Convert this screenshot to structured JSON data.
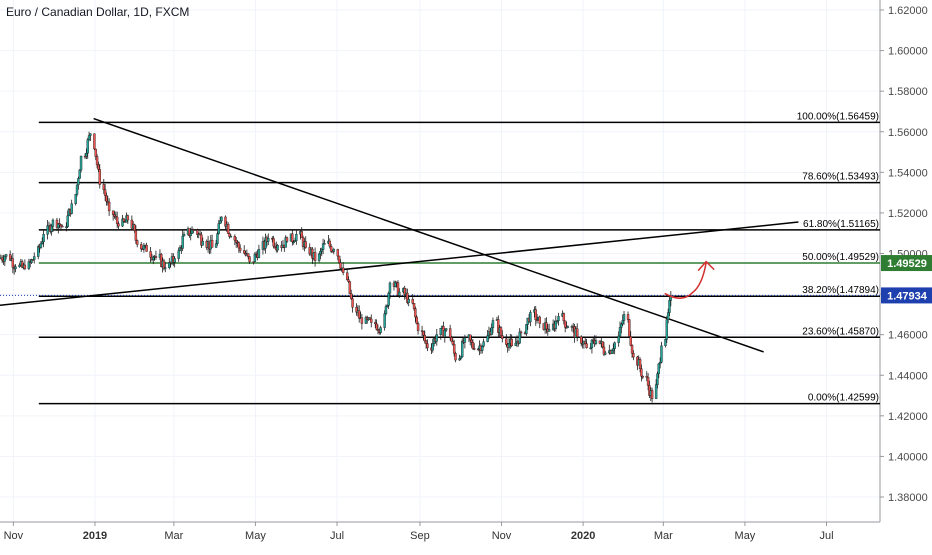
{
  "chart_data": {
    "type": "candlestick",
    "title": "Euro / Canadian Dollar, 1D, FXCM",
    "x_ticks": [
      "Nov",
      "2019",
      "Mar",
      "May",
      "Jul",
      "Sep",
      "Nov",
      "2020",
      "Mar",
      "May",
      "Jul"
    ],
    "x_tick_bold": [
      "2019",
      "2020"
    ],
    "y_ticks": [
      "1.62000",
      "1.60000",
      "1.58000",
      "1.56000",
      "1.54000",
      "1.52000",
      "1.50000",
      "1.48000",
      "1.46000",
      "1.44000",
      "1.42000",
      "1.40000",
      "1.38000"
    ],
    "y_range": [
      1.37,
      1.62
    ],
    "x_range": [
      "2018-10-22",
      "2020-08-10"
    ],
    "fib_levels": [
      {
        "label": "100.00%(1.56459)",
        "value": 1.56459,
        "color": "#000000",
        "from": "2018-11-20",
        "to": "2020-08-10"
      },
      {
        "label": "78.60%(1.53493)",
        "value": 1.53493,
        "color": "#000000",
        "from": "2018-11-20",
        "to": "2020-08-10"
      },
      {
        "label": "61.80%(1.51165)",
        "value": 1.51165,
        "color": "#000000",
        "from": "2018-11-20",
        "to": "2020-08-10"
      },
      {
        "label": "50.00%(1.49529)",
        "value": 1.49529,
        "color": "#2e7d32",
        "from": "2018-11-20",
        "to": "2020-08-10"
      },
      {
        "label": "38.20%(1.47894)",
        "value": 1.47894,
        "color": "#000000",
        "from": "2018-11-20",
        "to": "2020-08-10"
      },
      {
        "label": "23.60%(1.45870)",
        "value": 1.4587,
        "color": "#000000",
        "from": "2018-11-20",
        "to": "2020-08-10"
      },
      {
        "label": "0.00%(1.42599)",
        "value": 1.42599,
        "color": "#000000",
        "from": "2018-11-20",
        "to": "2020-08-10"
      }
    ],
    "trendlines": [
      {
        "from": [
          "2018-12-31",
          1.5665
        ],
        "to": [
          "2020-05-15",
          1.4515
        ],
        "color": "#000000"
      },
      {
        "from": [
          "2018-10-22",
          1.4745
        ],
        "to": [
          "2020-06-10",
          1.5155
        ],
        "color": "#000000"
      }
    ],
    "price_labels": [
      {
        "text": "1.49529",
        "value": 1.49529,
        "color": "#2e7d32"
      },
      {
        "text": "1.47934",
        "value": 1.47934,
        "color": "#1e40af"
      }
    ],
    "current_price": 1.47934,
    "colors": {
      "up": "#26a69a",
      "down": "#ef5350",
      "arrow": "#d32f2f",
      "grid": "#f0f3fa",
      "axis_text": "#4a4a4a"
    },
    "candles": [
      {
        "d": "2018-10-22",
        "o": 1.4975,
        "h": 1.5035,
        "l": 1.4915,
        "c": 1.4995
      },
      {
        "d": "2018-10-29",
        "o": 1.4995,
        "h": 1.5065,
        "l": 1.489,
        "c": 1.4935
      },
      {
        "d": "2018-11-05",
        "o": 1.4935,
        "h": 1.499,
        "l": 1.4865,
        "c": 1.4925
      },
      {
        "d": "2018-11-12",
        "o": 1.4925,
        "h": 1.502,
        "l": 1.4895,
        "c": 1.4985
      },
      {
        "d": "2018-11-19",
        "o": 1.4985,
        "h": 1.5115,
        "l": 1.496,
        "c": 1.5095
      },
      {
        "d": "2018-11-26",
        "o": 1.5095,
        "h": 1.5185,
        "l": 1.504,
        "c": 1.5165
      },
      {
        "d": "2018-12-03",
        "o": 1.5165,
        "h": 1.5225,
        "l": 1.509,
        "c": 1.513
      },
      {
        "d": "2018-12-10",
        "o": 1.513,
        "h": 1.5265,
        "l": 1.5105,
        "c": 1.5245
      },
      {
        "d": "2018-12-17",
        "o": 1.5245,
        "h": 1.551,
        "l": 1.522,
        "c": 1.548
      },
      {
        "d": "2018-12-24",
        "o": 1.548,
        "h": 1.565,
        "l": 1.541,
        "c": 1.559
      },
      {
        "d": "2018-12-31",
        "o": 1.559,
        "h": 1.566,
        "l": 1.529,
        "c": 1.534
      },
      {
        "d": "2019-01-07",
        "o": 1.534,
        "h": 1.5395,
        "l": 1.5175,
        "c": 1.521
      },
      {
        "d": "2019-01-14",
        "o": 1.521,
        "h": 1.5265,
        "l": 1.5095,
        "c": 1.5135
      },
      {
        "d": "2019-01-21",
        "o": 1.5135,
        "h": 1.522,
        "l": 1.505,
        "c": 1.5165
      },
      {
        "d": "2019-01-28",
        "o": 1.5165,
        "h": 1.521,
        "l": 1.5015,
        "c": 1.5045
      },
      {
        "d": "2019-02-04",
        "o": 1.5045,
        "h": 1.5095,
        "l": 1.496,
        "c": 1.501
      },
      {
        "d": "2019-02-11",
        "o": 1.501,
        "h": 1.507,
        "l": 1.4945,
        "c": 1.498
      },
      {
        "d": "2019-02-18",
        "o": 1.498,
        "h": 1.5035,
        "l": 1.4905,
        "c": 1.493
      },
      {
        "d": "2019-02-25",
        "o": 1.493,
        "h": 1.501,
        "l": 1.488,
        "c": 1.4975
      },
      {
        "d": "2019-03-04",
        "o": 1.4975,
        "h": 1.512,
        "l": 1.495,
        "c": 1.5095
      },
      {
        "d": "2019-03-11",
        "o": 1.5095,
        "h": 1.519,
        "l": 1.5065,
        "c": 1.5115
      },
      {
        "d": "2019-03-18",
        "o": 1.5115,
        "h": 1.517,
        "l": 1.5025,
        "c": 1.506
      },
      {
        "d": "2019-03-25",
        "o": 1.506,
        "h": 1.5135,
        "l": 1.499,
        "c": 1.503
      },
      {
        "d": "2019-04-01",
        "o": 1.503,
        "h": 1.521,
        "l": 1.5,
        "c": 1.518
      },
      {
        "d": "2019-04-08",
        "o": 1.518,
        "h": 1.52,
        "l": 1.504,
        "c": 1.5085
      },
      {
        "d": "2019-04-15",
        "o": 1.5085,
        "h": 1.5105,
        "l": 1.498,
        "c": 1.5015
      },
      {
        "d": "2019-04-22",
        "o": 1.5015,
        "h": 1.506,
        "l": 1.492,
        "c": 1.496
      },
      {
        "d": "2019-04-29",
        "o": 1.496,
        "h": 1.5045,
        "l": 1.4935,
        "c": 1.502
      },
      {
        "d": "2019-05-06",
        "o": 1.502,
        "h": 1.511,
        "l": 1.4995,
        "c": 1.5075
      },
      {
        "d": "2019-05-13",
        "o": 1.5075,
        "h": 1.512,
        "l": 1.5005,
        "c": 1.504
      },
      {
        "d": "2019-05-20",
        "o": 1.504,
        "h": 1.509,
        "l": 1.4975,
        "c": 1.506
      },
      {
        "d": "2019-05-27",
        "o": 1.506,
        "h": 1.513,
        "l": 1.502,
        "c": 1.5095
      },
      {
        "d": "2019-06-03",
        "o": 1.5095,
        "h": 1.514,
        "l": 1.5,
        "c": 1.503
      },
      {
        "d": "2019-06-10",
        "o": 1.503,
        "h": 1.507,
        "l": 1.493,
        "c": 1.4965
      },
      {
        "d": "2019-06-17",
        "o": 1.4965,
        "h": 1.508,
        "l": 1.494,
        "c": 1.505
      },
      {
        "d": "2019-06-24",
        "o": 1.505,
        "h": 1.511,
        "l": 1.499,
        "c": 1.502
      },
      {
        "d": "2019-07-01",
        "o": 1.502,
        "h": 1.5045,
        "l": 1.488,
        "c": 1.4905
      },
      {
        "d": "2019-07-08",
        "o": 1.4905,
        "h": 1.493,
        "l": 1.47,
        "c": 1.4735
      },
      {
        "d": "2019-07-15",
        "o": 1.4735,
        "h": 1.4765,
        "l": 1.461,
        "c": 1.4655
      },
      {
        "d": "2019-07-22",
        "o": 1.4655,
        "h": 1.47,
        "l": 1.4585,
        "c": 1.466
      },
      {
        "d": "2019-07-29",
        "o": 1.466,
        "h": 1.4705,
        "l": 1.46,
        "c": 1.4635
      },
      {
        "d": "2019-08-05",
        "o": 1.4635,
        "h": 1.489,
        "l": 1.462,
        "c": 1.4855
      },
      {
        "d": "2019-08-12",
        "o": 1.4855,
        "h": 1.499,
        "l": 1.478,
        "c": 1.481
      },
      {
        "d": "2019-08-19",
        "o": 1.481,
        "h": 1.486,
        "l": 1.474,
        "c": 1.4775
      },
      {
        "d": "2019-08-26",
        "o": 1.4775,
        "h": 1.48,
        "l": 1.459,
        "c": 1.462
      },
      {
        "d": "2019-09-02",
        "o": 1.462,
        "h": 1.4655,
        "l": 1.451,
        "c": 1.4535
      },
      {
        "d": "2019-09-09",
        "o": 1.4535,
        "h": 1.464,
        "l": 1.4505,
        "c": 1.46
      },
      {
        "d": "2019-09-16",
        "o": 1.46,
        "h": 1.4675,
        "l": 1.4555,
        "c": 1.463
      },
      {
        "d": "2019-09-23",
        "o": 1.463,
        "h": 1.465,
        "l": 1.445,
        "c": 1.4475
      },
      {
        "d": "2019-09-30",
        "o": 1.4475,
        "h": 1.461,
        "l": 1.446,
        "c": 1.4585
      },
      {
        "d": "2019-10-07",
        "o": 1.4585,
        "h": 1.464,
        "l": 1.45,
        "c": 1.453
      },
      {
        "d": "2019-10-14",
        "o": 1.453,
        "h": 1.46,
        "l": 1.4455,
        "c": 1.4565
      },
      {
        "d": "2019-10-21",
        "o": 1.4565,
        "h": 1.47,
        "l": 1.454,
        "c": 1.467
      },
      {
        "d": "2019-10-28",
        "o": 1.467,
        "h": 1.4695,
        "l": 1.454,
        "c": 1.458
      },
      {
        "d": "2019-11-04",
        "o": 1.458,
        "h": 1.4615,
        "l": 1.4505,
        "c": 1.4545
      },
      {
        "d": "2019-11-11",
        "o": 1.4545,
        "h": 1.464,
        "l": 1.452,
        "c": 1.461
      },
      {
        "d": "2019-11-18",
        "o": 1.461,
        "h": 1.474,
        "l": 1.459,
        "c": 1.471
      },
      {
        "d": "2019-11-25",
        "o": 1.471,
        "h": 1.475,
        "l": 1.462,
        "c": 1.4655
      },
      {
        "d": "2019-12-02",
        "o": 1.4655,
        "h": 1.4705,
        "l": 1.458,
        "c": 1.4625
      },
      {
        "d": "2019-12-09",
        "o": 1.4625,
        "h": 1.472,
        "l": 1.46,
        "c": 1.469
      },
      {
        "d": "2019-12-16",
        "o": 1.469,
        "h": 1.472,
        "l": 1.46,
        "c": 1.464
      },
      {
        "d": "2019-12-23",
        "o": 1.464,
        "h": 1.467,
        "l": 1.456,
        "c": 1.459
      },
      {
        "d": "2019-12-30",
        "o": 1.459,
        "h": 1.463,
        "l": 1.45,
        "c": 1.4535
      },
      {
        "d": "2020-01-06",
        "o": 1.4535,
        "h": 1.461,
        "l": 1.448,
        "c": 1.457
      },
      {
        "d": "2020-01-13",
        "o": 1.457,
        "h": 1.46,
        "l": 1.447,
        "c": 1.451
      },
      {
        "d": "2020-01-20",
        "o": 1.451,
        "h": 1.459,
        "l": 1.448,
        "c": 1.456
      },
      {
        "d": "2020-01-27",
        "o": 1.456,
        "h": 1.473,
        "l": 1.454,
        "c": 1.47
      },
      {
        "d": "2020-02-03",
        "o": 1.47,
        "h": 1.472,
        "l": 1.446,
        "c": 1.449
      },
      {
        "d": "2020-02-10",
        "o": 1.449,
        "h": 1.451,
        "l": 1.437,
        "c": 1.4395
      },
      {
        "d": "2020-02-17",
        "o": 1.4395,
        "h": 1.442,
        "l": 1.4262,
        "c": 1.4285
      },
      {
        "d": "2020-02-24",
        "o": 1.4285,
        "h": 1.4565,
        "l": 1.4275,
        "c": 1.4545
      },
      {
        "d": "2020-03-02",
        "o": 1.4545,
        "h": 1.489,
        "l": 1.453,
        "c": 1.4793
      }
    ]
  }
}
